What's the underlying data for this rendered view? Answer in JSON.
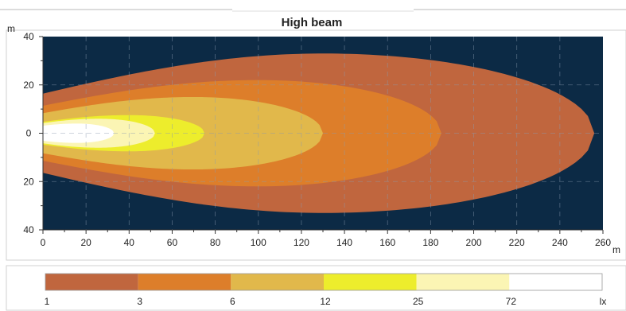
{
  "chart_data": {
    "type": "heatmap",
    "title": "High beam",
    "xlabel": "m",
    "ylabel": "m",
    "xlim": [
      0,
      260
    ],
    "ylim": [
      -40,
      40
    ],
    "x_ticks": [
      0,
      20,
      40,
      60,
      80,
      100,
      120,
      140,
      160,
      180,
      200,
      220,
      240,
      260
    ],
    "x_tick_labels": [
      "0",
      "20",
      "40",
      "60",
      "80",
      "100",
      "120",
      "140",
      "160",
      "180",
      "200",
      "220",
      "240",
      "260"
    ],
    "y_ticks": [
      40,
      20,
      0,
      -20,
      -40
    ],
    "y_tick_labels": [
      "40",
      "20",
      "0",
      "20",
      "40"
    ],
    "grid": true,
    "background_color": "#0c2a45",
    "series": [
      {
        "name": "1",
        "color": "#c0663e",
        "reach": 256,
        "half_width_max": 33,
        "peak_x": 130
      },
      {
        "name": "3",
        "color": "#dd7e2a",
        "reach": 185,
        "half_width_max": 22,
        "peak_x": 100
      },
      {
        "name": "6",
        "color": "#e1b84b",
        "reach": 130,
        "half_width_max": 15,
        "peak_x": 70
      },
      {
        "name": "12",
        "color": "#eded2c",
        "reach": 75,
        "half_width_max": 7.5,
        "peak_x": 40
      },
      {
        "name": "25",
        "color": "#fbf5b4",
        "reach": 52,
        "half_width_max": 6,
        "peak_x": 26
      },
      {
        "name": "72",
        "color": "#ffffff",
        "reach": 33,
        "half_width_max": 4,
        "peak_x": 16
      }
    ],
    "legend": {
      "labels": [
        "1",
        "3",
        "6",
        "12",
        "25",
        "72"
      ],
      "unit": "lx",
      "colors": [
        "#c0663e",
        "#dd7e2a",
        "#e1b84b",
        "#eded2c",
        "#fbf5b4",
        "#ffffff"
      ],
      "position": "bottom"
    }
  }
}
